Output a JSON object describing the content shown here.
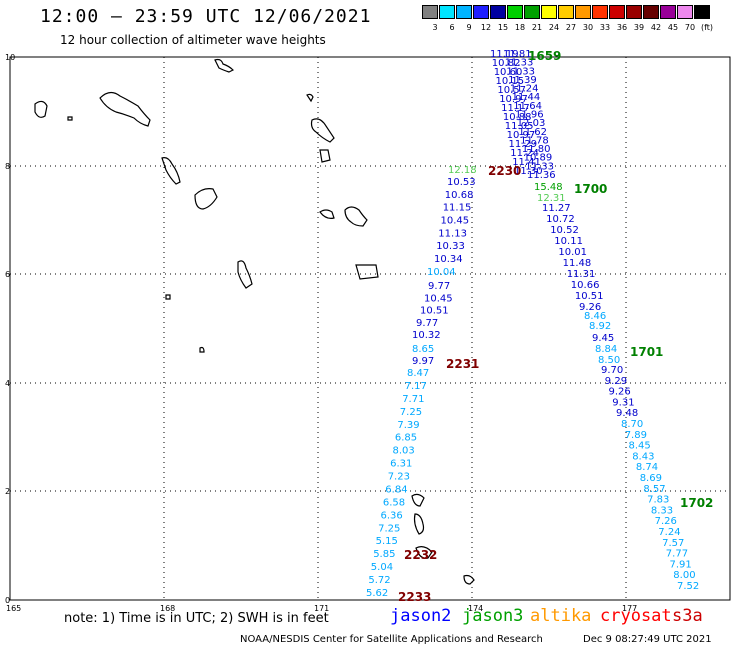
{
  "title": "12:00 – 23:59 UTC 12/06/2021",
  "subtitle": "12 hour collection of altimeter wave heights",
  "scale": {
    "colors": [
      "#808080",
      "#00e5ff",
      "#00b4ff",
      "#1f1fff",
      "#0000a0",
      "#00d000",
      "#00a000",
      "#ffff00",
      "#ffcc00",
      "#ff9900",
      "#ff3300",
      "#cc0000",
      "#990000",
      "#660000",
      "#990099",
      "#ee88ee",
      "#000000"
    ],
    "labels": [
      "3",
      "6",
      "9",
      "12",
      "15",
      "18",
      "21",
      "24",
      "27",
      "30",
      "33",
      "36",
      "39",
      "42",
      "45",
      "70",
      "(ft)"
    ]
  },
  "axes": {
    "x_ticks": [
      "165",
      "168",
      "171",
      "174",
      "177"
    ],
    "y_ticks": [
      "10",
      "8",
      "6",
      "4",
      "2",
      "0"
    ]
  },
  "tracks": [
    {
      "color": "#0000cc",
      "values": [
        "11.19",
        "10.82",
        "10.60",
        "10.15",
        "10.57",
        "10.97",
        "11.17",
        "10.88",
        "11.05",
        "10.97",
        "11.29",
        "11.24",
        "11.41",
        "11.30"
      ]
    },
    {
      "color": "#55cc55",
      "values": [
        "12.18"
      ]
    },
    {
      "color": "#0000cc",
      "values": [
        "10.53",
        "10.68",
        "11.15",
        "10.45",
        "11.13",
        "10.33",
        "10.34"
      ]
    },
    {
      "color": "#00a8ff",
      "values": [
        "10.04"
      ]
    },
    {
      "color": "#0000cc",
      "values": [
        "9.77",
        "10.45",
        "10.51",
        "9.77",
        "10.32"
      ]
    },
    {
      "color": "#00a8ff",
      "values": [
        "8.65"
      ]
    },
    {
      "color": "#0000cc",
      "values": [
        "9.97"
      ]
    },
    {
      "color": "#00a8ff",
      "values": [
        "8.47",
        "7.17",
        "7.71",
        "7.25",
        "7.39",
        "6.85",
        "8.03",
        "6.31",
        "7.23",
        "6.84",
        "6.58",
        "6.36",
        "7.25",
        "5.15",
        "5.85",
        "5.04",
        "5.72",
        "5.62"
      ]
    },
    {
      "color": "#0000cc",
      "values": [
        "11.81",
        "11.33",
        "11.33",
        "11.39",
        "11.24",
        "11.44",
        "11.64",
        "11.96",
        "12.03",
        "11.62",
        "11.78",
        "11.80",
        "10.89",
        "11.33",
        "11.36"
      ]
    },
    {
      "color": "#00a000",
      "values": [
        "15.48"
      ]
    },
    {
      "color": "#55cc55",
      "values": [
        "12.31"
      ]
    },
    {
      "color": "#0000cc",
      "values": [
        "11.27",
        "10.72",
        "10.52",
        "10.11",
        "10.01",
        "11.48",
        "11.31",
        "10.66",
        "10.51",
        "9.26"
      ]
    },
    {
      "color": "#00a8ff",
      "values": [
        "8.46",
        "8.92"
      ]
    },
    {
      "color": "#0000cc",
      "values": [
        "9.45"
      ]
    },
    {
      "color": "#00a8ff",
      "values": [
        "8.84",
        "8.50"
      ]
    },
    {
      "color": "#0000cc",
      "values": [
        "9.70",
        "9.29",
        "9.26",
        "9.31",
        "9.48"
      ]
    },
    {
      "color": "#00a8ff",
      "values": [
        "8.70",
        "7.89",
        "8.45",
        "8.43",
        "8.74",
        "8.69",
        "8.57",
        "7.83",
        "8.33",
        "7.26",
        "7.24",
        "7.57",
        "7.77",
        "7.91",
        "8.00",
        "7.52"
      ]
    }
  ],
  "time_labels": [
    {
      "text": "1659",
      "color": "#008000"
    },
    {
      "text": "2230",
      "color": "#800000"
    },
    {
      "text": "1700",
      "color": "#008000"
    },
    {
      "text": "1701",
      "color": "#008000"
    },
    {
      "text": "2231",
      "color": "#800000"
    },
    {
      "text": "1702",
      "color": "#008000"
    },
    {
      "text": "2232",
      "color": "#800000"
    },
    {
      "text": "2233",
      "color": "#800000"
    }
  ],
  "note": "note:  1) Time is in UTC;  2) SWH is in feet",
  "satellites": [
    {
      "name": "jason2",
      "color": "#0000ff"
    },
    {
      "name": "jason3",
      "color": "#00a000"
    },
    {
      "name": "altika",
      "color": "#ff9900"
    },
    {
      "name": "cryosat",
      "color": "#ff0000"
    },
    {
      "name": "s3a",
      "color": "#cc0000"
    }
  ],
  "footer": "NOAA/NESDIS Center for Satellite Applications and Research",
  "footer_date": "Dec  9 08:27:49 UTC 2021"
}
